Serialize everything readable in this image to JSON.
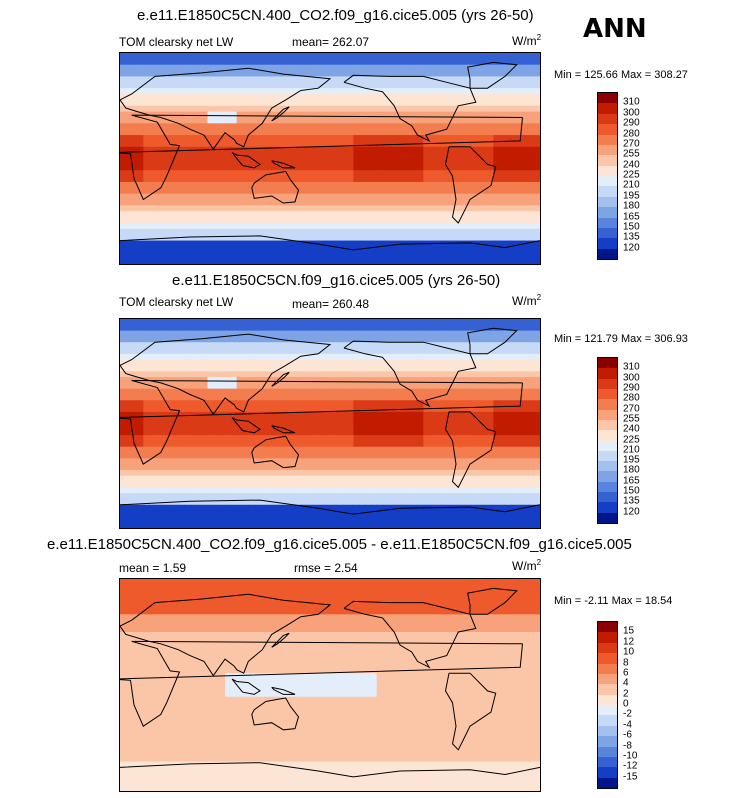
{
  "season": "ANN",
  "panels": [
    {
      "title": "e.e11.E1850C5CN.400_CO2.f09_g16.cice5.005 (yrs 26-50)",
      "left_label": "TOM clearsky net LW",
      "stat1": "mean= 262.07",
      "units": "W/m",
      "units_sup": "2",
      "minmax": "Min = 125.66 Max = 308.27",
      "levels": [
        "310",
        "300",
        "290",
        "280",
        "270",
        "255",
        "240",
        "225",
        "210",
        "195",
        "180",
        "165",
        "150",
        "135",
        "120"
      ],
      "colors": [
        "#8b0000",
        "#c21c00",
        "#db3a17",
        "#ee5a2c",
        "#f37d4e",
        "#f7a27a",
        "#fbc6a8",
        "#fde5d6",
        "#e4eefb",
        "#c6d9f6",
        "#a3c1ee",
        "#7ea4e6",
        "#5884de",
        "#3561d3",
        "#153ec6",
        "#00148c"
      ]
    },
    {
      "title": "e.e11.E1850C5CN.f09_g16.cice5.005 (yrs 26-50)",
      "left_label": "TOM clearsky net LW",
      "stat1": "mean= 260.48",
      "units": "W/m",
      "units_sup": "2",
      "minmax": "Min = 121.79 Max = 306.93",
      "levels": [
        "310",
        "300",
        "290",
        "280",
        "270",
        "255",
        "240",
        "225",
        "210",
        "195",
        "180",
        "165",
        "150",
        "135",
        "120"
      ],
      "colors": [
        "#8b0000",
        "#c21c00",
        "#db3a17",
        "#ee5a2c",
        "#f37d4e",
        "#f7a27a",
        "#fbc6a8",
        "#fde5d6",
        "#e4eefb",
        "#c6d9f6",
        "#a3c1ee",
        "#7ea4e6",
        "#5884de",
        "#3561d3",
        "#153ec6",
        "#00148c"
      ]
    },
    {
      "title": "e.e11.E1850C5CN.400_CO2.f09_g16.cice5.005 - e.e11.E1850C5CN.f09_g16.cice5.005",
      "left_label": "mean =   1.59",
      "stat1": "rmse =   2.54",
      "units": "W/m",
      "units_sup": "2",
      "minmax": "Min =  -2.11 Max =  18.54",
      "levels": [
        "15",
        "12",
        "10",
        "8",
        "6",
        "4",
        "2",
        "0",
        "-2",
        "-4",
        "-6",
        "-8",
        "-10",
        "-12",
        "-15"
      ],
      "colors": [
        "#8b0000",
        "#c21c00",
        "#db3a17",
        "#ee5a2c",
        "#f37d4e",
        "#f7a27a",
        "#fbc6a8",
        "#fde5d6",
        "#e4eefb",
        "#c6d9f6",
        "#a3c1ee",
        "#7ea4e6",
        "#5884de",
        "#3561d3",
        "#153ec6",
        "#00148c"
      ]
    }
  ],
  "chart_data": [
    {
      "type": "heatmap",
      "title": "e.e11.E1850C5CN.400_CO2.f09_g16.cice5.005 (yrs 26-50)",
      "variable": "TOM clearsky net LW",
      "units": "W/m2",
      "mean": 262.07,
      "min": 125.66,
      "max": 308.27,
      "contour_levels": [
        120,
        135,
        150,
        165,
        180,
        195,
        210,
        225,
        240,
        255,
        270,
        280,
        290,
        300,
        310
      ],
      "xrange_lon": [
        0,
        360
      ],
      "yrange_lat": [
        -90,
        90
      ]
    },
    {
      "type": "heatmap",
      "title": "e.e11.E1850C5CN.f09_g16.cice5.005 (yrs 26-50)",
      "variable": "TOM clearsky net LW",
      "units": "W/m2",
      "mean": 260.48,
      "min": 121.79,
      "max": 306.93,
      "contour_levels": [
        120,
        135,
        150,
        165,
        180,
        195,
        210,
        225,
        240,
        255,
        270,
        280,
        290,
        300,
        310
      ],
      "xrange_lon": [
        0,
        360
      ],
      "yrange_lat": [
        -90,
        90
      ]
    },
    {
      "type": "heatmap",
      "title": "e.e11.E1850C5CN.400_CO2.f09_g16.cice5.005 - e.e11.E1850C5CN.f09_g16.cice5.005",
      "units": "W/m2",
      "mean": 1.59,
      "rmse": 2.54,
      "min": -2.11,
      "max": 18.54,
      "contour_levels": [
        -15,
        -12,
        -10,
        -8,
        -6,
        -4,
        -2,
        0,
        2,
        4,
        6,
        8,
        10,
        12,
        15
      ],
      "xrange_lon": [
        0,
        360
      ],
      "yrange_lat": [
        -90,
        90
      ]
    }
  ]
}
